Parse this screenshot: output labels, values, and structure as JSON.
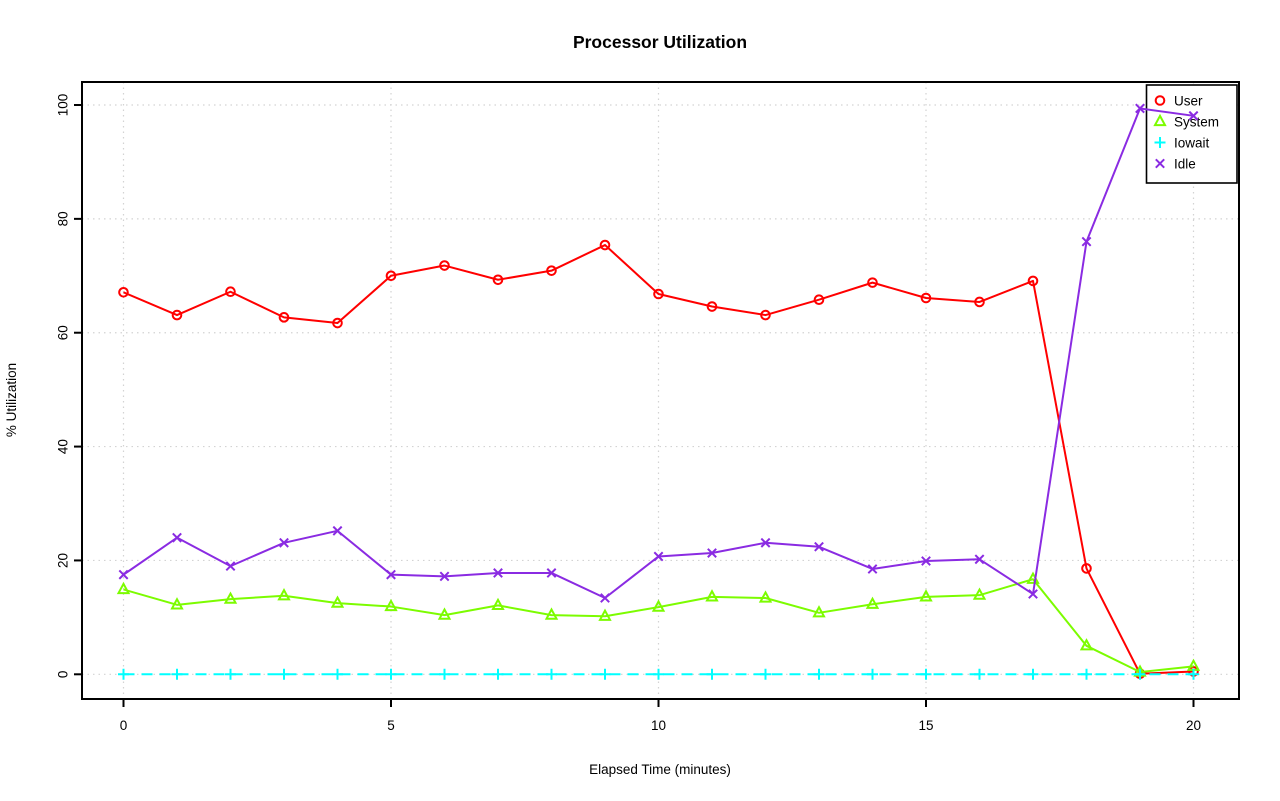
{
  "chart_data": {
    "type": "line",
    "title": "Processor Utilization",
    "xlabel": "Elapsed Time (minutes)",
    "ylabel": "% Utilization",
    "xlim": [
      0,
      20
    ],
    "ylim": [
      0,
      100
    ],
    "xticks": [
      0,
      5,
      10,
      15,
      20
    ],
    "yticks": [
      0,
      20,
      40,
      60,
      80,
      100
    ],
    "grid": true,
    "grid_style": "dotted",
    "grid_color": "#D3D3D3",
    "legend_position": "top-right",
    "x": [
      0,
      1,
      2,
      3,
      4,
      5,
      6,
      7,
      8,
      9,
      10,
      11,
      12,
      13,
      14,
      15,
      16,
      17,
      18,
      19,
      20
    ],
    "series": [
      {
        "name": "User",
        "color": "#FF0000",
        "marker": "circle",
        "line": "solid",
        "values": [
          67.1,
          63.1,
          67.2,
          62.7,
          61.7,
          70.0,
          71.8,
          69.3,
          70.9,
          75.4,
          66.8,
          64.6,
          63.1,
          65.8,
          68.8,
          66.1,
          65.4,
          69.1,
          18.6,
          0.1,
          0.5
        ]
      },
      {
        "name": "System",
        "color": "#7CFC00",
        "marker": "triangle",
        "line": "solid",
        "values": [
          14.9,
          12.2,
          13.2,
          13.8,
          12.5,
          11.9,
          10.4,
          12.1,
          10.4,
          10.2,
          11.8,
          13.6,
          13.4,
          10.8,
          12.3,
          13.6,
          13.9,
          16.7,
          5.0,
          0.4,
          1.4
        ]
      },
      {
        "name": "Iowait",
        "color": "#00FFFF",
        "marker": "plus",
        "line": "dashed",
        "values": [
          0,
          0,
          0,
          0,
          0,
          0,
          0,
          0,
          0,
          0,
          0,
          0,
          0,
          0,
          0,
          0,
          0,
          0,
          0,
          0,
          0
        ]
      },
      {
        "name": "Idle",
        "color": "#8A2BE2",
        "marker": "x",
        "line": "solid",
        "values": [
          17.5,
          24.0,
          19.0,
          23.1,
          25.2,
          17.5,
          17.2,
          17.8,
          17.8,
          13.4,
          20.7,
          21.3,
          23.1,
          22.4,
          18.5,
          19.9,
          20.2,
          14.1,
          76.0,
          99.4,
          98.1
        ]
      }
    ]
  }
}
